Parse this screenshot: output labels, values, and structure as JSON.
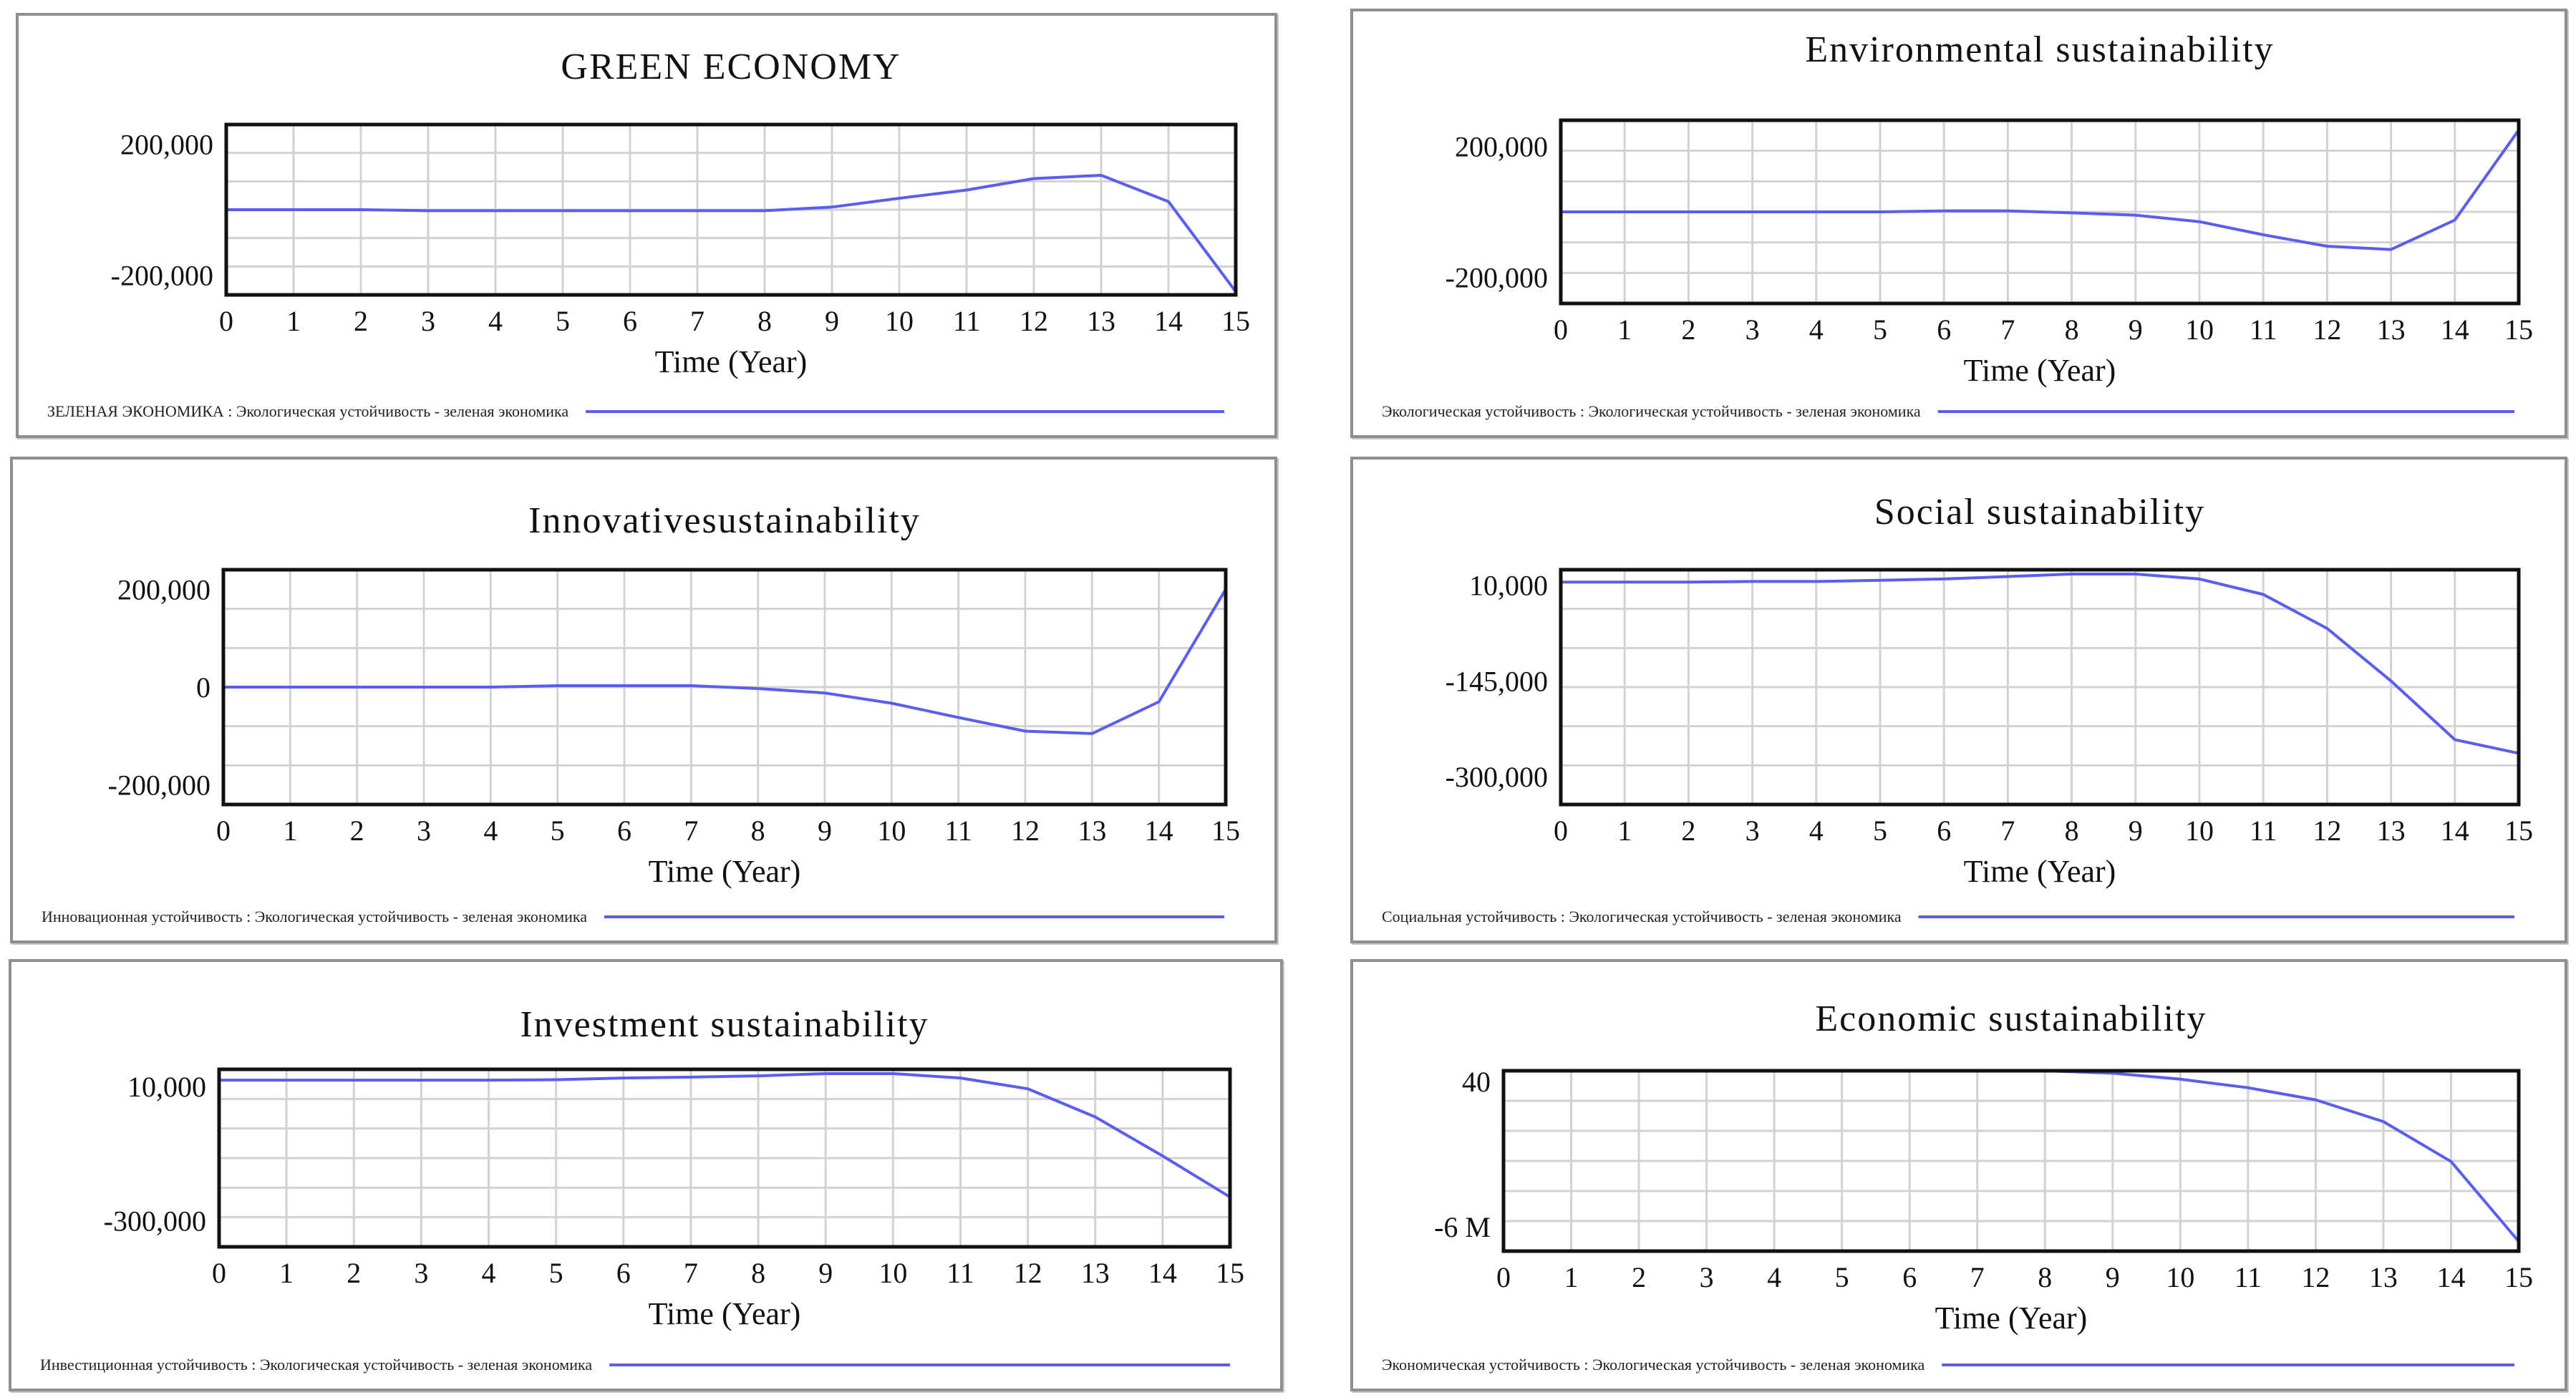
{
  "chart_data": [
    {
      "id": "green-economy",
      "type": "line",
      "title": "GREEN ECONOMY",
      "xlabel": "Time (Year)",
      "ylabel": "",
      "x": [
        0,
        1,
        2,
        3,
        4,
        5,
        6,
        7,
        8,
        9,
        10,
        11,
        12,
        13,
        14,
        15
      ],
      "ylim": [
        -260000,
        260000
      ],
      "yticks": [
        200000,
        -200000
      ],
      "ytick_labels": [
        "200,000",
        "-200,000"
      ],
      "series": [
        {
          "name": "ЗЕЛЕНАЯ ЭКОНОМИКА : Экологическая устойчивость - зеленая экономика",
          "values": [
            0,
            0,
            0,
            -3000,
            -3000,
            -3000,
            -3000,
            -3000,
            -3000,
            8000,
            35000,
            60000,
            95000,
            105000,
            25000,
            -250000
          ]
        }
      ],
      "legend": "ЗЕЛЕНАЯ ЭКОНОМИКА : Экологическая устойчивость - зеленая экономика",
      "grid": true
    },
    {
      "id": "environmental",
      "type": "line",
      "title": "Environmental sustainability",
      "xlabel": "Time (Year)",
      "ylabel": "",
      "x": [
        0,
        1,
        2,
        3,
        4,
        5,
        6,
        7,
        8,
        9,
        10,
        11,
        12,
        13,
        14,
        15
      ],
      "ylim": [
        -280000,
        280000
      ],
      "yticks": [
        200000,
        -200000
      ],
      "ytick_labels": [
        "200,000",
        "-200,000"
      ],
      "series": [
        {
          "name": "Экологическая устойчивость : Экологическая устойчивость - зеленая экономика",
          "values": [
            0,
            0,
            0,
            0,
            0,
            0,
            3000,
            3000,
            -3000,
            -10000,
            -30000,
            -70000,
            -105000,
            -115000,
            -25000,
            250000
          ]
        }
      ],
      "legend": "Экологическая устойчивость : Экологическая устойчивость - зеленая экономика",
      "grid": true
    },
    {
      "id": "innovative",
      "type": "line",
      "title": "Innovativesustainability",
      "xlabel": "Time (Year)",
      "ylabel": "",
      "x": [
        0,
        1,
        2,
        3,
        4,
        5,
        6,
        7,
        8,
        9,
        10,
        11,
        12,
        13,
        14,
        15
      ],
      "ylim": [
        -240000,
        240000
      ],
      "yticks": [
        200000,
        0,
        -200000
      ],
      "ytick_labels": [
        "200,000",
        "0",
        "-200,000"
      ],
      "series": [
        {
          "name": "Инновационная устойчивость : Экологическая устойчивость - зеленая экономика",
          "values": [
            0,
            0,
            0,
            0,
            0,
            3000,
            3000,
            3000,
            -3000,
            -12000,
            -33000,
            -62000,
            -90000,
            -95000,
            -30000,
            200000
          ]
        }
      ],
      "legend": "Инновационная устойчивость : Экологическая устойчивость - зеленая экономика",
      "grid": true
    },
    {
      "id": "social",
      "type": "line",
      "title": "Social sustainability",
      "xlabel": "Time (Year)",
      "ylabel": "",
      "x": [
        0,
        1,
        2,
        3,
        4,
        5,
        6,
        7,
        8,
        9,
        10,
        11,
        12,
        13,
        14,
        15
      ],
      "ylim": [
        -345000,
        35000
      ],
      "yticks": [
        10000,
        -145000,
        -300000
      ],
      "ytick_labels": [
        "10,000",
        "-145,000",
        "-300,000"
      ],
      "series": [
        {
          "name": "Социальная устойчивость : Экологическая устойчивость - зеленая экономика",
          "values": [
            15000,
            15000,
            15000,
            16000,
            16000,
            18000,
            20000,
            24000,
            28000,
            28000,
            20000,
            -5000,
            -60000,
            -145000,
            -240000,
            -262000
          ]
        }
      ],
      "legend": "Социальная устойчивость : Экологическая устойчивость - зеленая экономика",
      "grid": true
    },
    {
      "id": "investment",
      "type": "line",
      "title": "Investment sustainability",
      "xlabel": "Time (Year)",
      "ylabel": "",
      "x": [
        0,
        1,
        2,
        3,
        4,
        5,
        6,
        7,
        8,
        9,
        10,
        11,
        12,
        13,
        14,
        15
      ],
      "ylim": [
        -360000,
        50000
      ],
      "yticks": [
        10000,
        -300000
      ],
      "ytick_labels": [
        "10,000",
        "-300,000"
      ],
      "series": [
        {
          "name": "Инвестиционная устойчивость : Экологическая устойчивость - зеленая экономика",
          "values": [
            25000,
            25000,
            25000,
            25000,
            25000,
            26000,
            30000,
            32000,
            35000,
            40000,
            40000,
            30000,
            5000,
            -60000,
            -150000,
            -245000
          ]
        }
      ],
      "legend": "Инвестиционная устойчивость : Экологическая устойчивость - зеленая экономика",
      "grid": true
    },
    {
      "id": "economic",
      "type": "line",
      "title": "Economic sustainability",
      "xlabel": "Time (Year)",
      "ylabel": "",
      "x": [
        0,
        1,
        2,
        3,
        4,
        5,
        6,
        7,
        8,
        9,
        10,
        11,
        12,
        13,
        14,
        15
      ],
      "ylim": [
        -7000000,
        450000
      ],
      "yticks": [
        40,
        -6000000
      ],
      "ytick_labels": [
        "40",
        "-6 M"
      ],
      "series": [
        {
          "name": "Экономическая устойчивость : Экологическая устойчивость - зеленая экономика",
          "values": [
            450000,
            450000,
            450000,
            450000,
            450000,
            450000,
            450000,
            450000,
            450000,
            350000,
            100000,
            -250000,
            -750000,
            -1650000,
            -3300000,
            -6600000
          ]
        }
      ],
      "legend": "Экономическая устойчивость : Экологическая устойчивость - зеленая экономика",
      "grid": true
    }
  ]
}
